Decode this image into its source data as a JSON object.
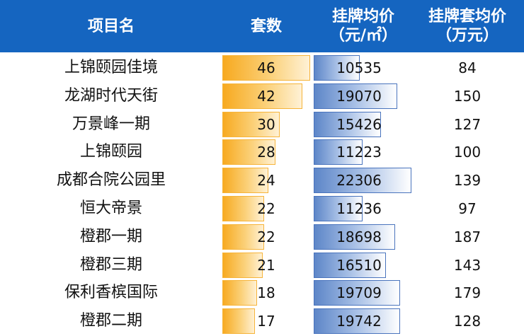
{
  "headers": {
    "name": "项目名",
    "count": "套数",
    "price_line1": "挂牌均价",
    "price_line2": "（元/㎡）",
    "avg_line1": "挂牌套均价",
    "avg_line2": "（万元）"
  },
  "colors": {
    "header_bg": "#1565c0",
    "count_bar": "#f7a91e",
    "price_bar": "#5d86c8"
  },
  "chart_data": {
    "type": "table",
    "columns": [
      "项目名",
      "套数",
      "挂牌均价（元/㎡）",
      "挂牌套均价（万元）"
    ],
    "count_max": 46,
    "price_max": 24000,
    "rows": [
      {
        "name": "上锦颐园佳境",
        "count": 46,
        "price": 10535,
        "avg": 84
      },
      {
        "name": "龙湖时代天街",
        "count": 42,
        "price": 19070,
        "avg": 150
      },
      {
        "name": "万景峰一期",
        "count": 30,
        "price": 15426,
        "avg": 127
      },
      {
        "name": "上锦颐园",
        "count": 28,
        "price": 11223,
        "avg": 100
      },
      {
        "name": "成都合院公园里",
        "count": 24,
        "price": 22306,
        "avg": 139
      },
      {
        "name": "恒大帝景",
        "count": 22,
        "price": 11236,
        "avg": 97
      },
      {
        "name": "橙郡一期",
        "count": 22,
        "price": 18698,
        "avg": 187
      },
      {
        "name": "橙郡三期",
        "count": 21,
        "price": 16510,
        "avg": 143
      },
      {
        "name": "保利香槟国际",
        "count": 18,
        "price": 19709,
        "avg": 179
      },
      {
        "name": "橙郡二期",
        "count": 17,
        "price": 19742,
        "avg": 128
      }
    ]
  }
}
